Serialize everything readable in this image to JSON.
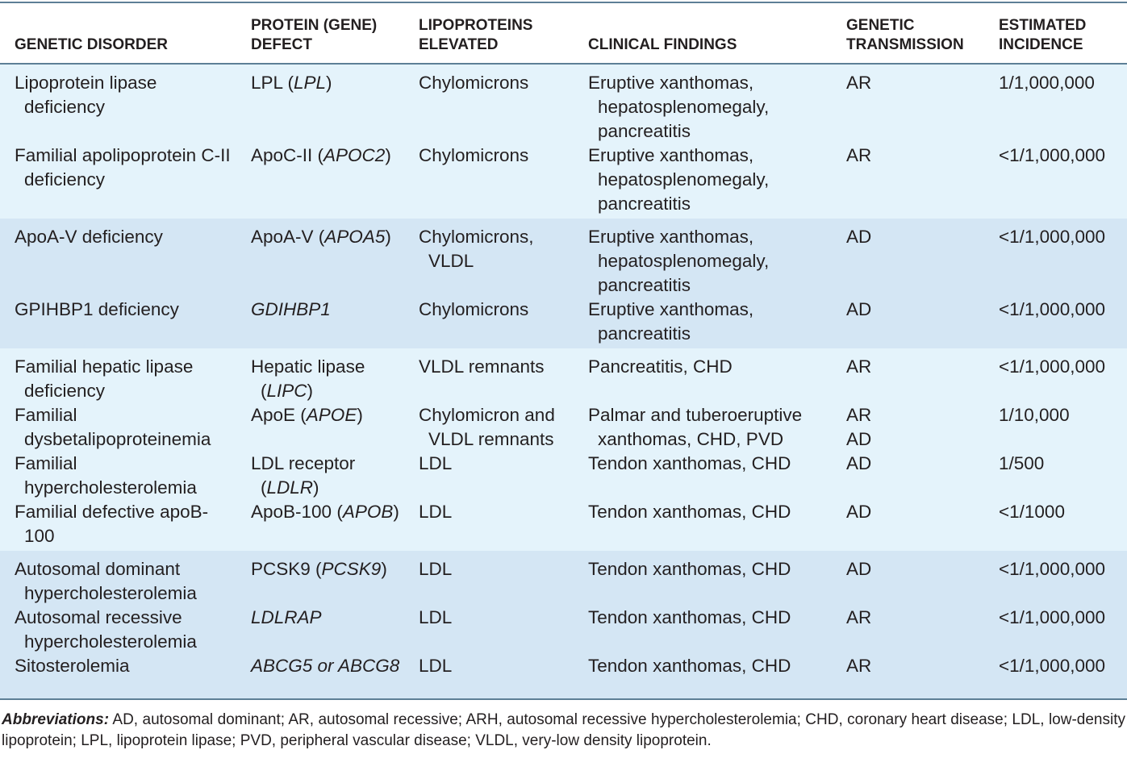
{
  "table": {
    "header": [
      "GENETIC DISORDER",
      "PROTEIN (GENE) DEFECT",
      "LIPOPROTEINS ELEVATED",
      "CLINICAL FINDINGS",
      "GENETIC TRANSMISSION",
      "ESTIMATED INCIDENCE"
    ],
    "rows": [
      [
        "Lipoprotein lipase deficiency",
        [
          {
            "text": "LPL ("
          },
          {
            "text": "LPL",
            "italic": true
          },
          {
            "text": ")"
          }
        ],
        "Chylomicrons",
        "Eruptive xanthomas, hepatosplenomegaly, pancreatitis",
        "AR",
        "1/1,000,000"
      ],
      [
        "Familial apolipoprotein C-II deficiency",
        [
          {
            "text": "ApoC-II ("
          },
          {
            "text": "APOC2",
            "italic": true
          },
          {
            "text": ")"
          }
        ],
        "Chylomicrons",
        "Eruptive xanthomas, hepatosplenomegaly, pancreatitis",
        "AR",
        "<1/1,000,000"
      ],
      [
        "ApoA-V deficiency",
        [
          {
            "text": "ApoA-V ("
          },
          {
            "text": "APOA5",
            "italic": true
          },
          {
            "text": ")"
          }
        ],
        "Chylomicrons, VLDL",
        "Eruptive xanthomas, hepatosplenomegaly, pancreatitis",
        "AD",
        "<1/1,000,000"
      ],
      [
        "GPIHBP1 deficiency",
        [
          {
            "text": "GDIHBP1",
            "italic": true
          }
        ],
        "Chylomicrons",
        "Eruptive xanthomas, pancreatitis",
        "AD",
        "<1/1,000,000"
      ],
      [
        "Familial hepatic lipase deficiency",
        [
          {
            "text": "Hepatic lipase ("
          },
          {
            "text": "LIPC",
            "italic": true
          },
          {
            "text": ")"
          }
        ],
        "VLDL remnants",
        "Pancreatitis, CHD",
        "AR",
        "<1/1,000,000"
      ],
      [
        "Familial dysbetalipoproteinemia",
        [
          {
            "text": "ApoE ("
          },
          {
            "text": "APOE",
            "italic": true
          },
          {
            "text": ")"
          }
        ],
        "Chylomicron and VLDL remnants",
        "Palmar and tuberoeruptive xanthomas, CHD, PVD",
        [
          "AR",
          "AD"
        ],
        "1/10,000"
      ],
      [
        "Familial hypercholesterolemia",
        [
          {
            "text": "LDL receptor ("
          },
          {
            "text": "LDLR",
            "italic": true
          },
          {
            "text": ")"
          }
        ],
        "LDL",
        "Tendon xanthomas, CHD",
        "AD",
        "1/500"
      ],
      [
        "Familial defective apoB-100",
        [
          {
            "text": "ApoB-100 ("
          },
          {
            "text": "APOB",
            "italic": true
          },
          {
            "text": ")"
          }
        ],
        "LDL",
        "Tendon xanthomas, CHD",
        "AD",
        "<1/1000"
      ],
      [
        "Autosomal dominant hypercholesterolemia",
        [
          {
            "text": "PCSK9 ("
          },
          {
            "text": "PCSK9",
            "italic": true
          },
          {
            "text": ")"
          }
        ],
        "LDL",
        "Tendon xanthomas, CHD",
        "AD",
        "<1/1,000,000"
      ],
      [
        "Autosomal recessive hypercholesterolemia",
        [
          {
            "text": "LDLRAP",
            "italic": true
          }
        ],
        "LDL",
        "Tendon xanthomas, CHD",
        "AR",
        "<1/1,000,000"
      ],
      [
        "Sitosterolemia",
        [
          {
            "text": "ABCG5 or ABCG8",
            "italic": true
          }
        ],
        "LDL",
        "Tendon xanthomas, CHD",
        "AR",
        "<1/1,000,000"
      ]
    ]
  },
  "footer": {
    "label": "Abbreviations:",
    "text": "AD, autosomal dominant; AR, autosomal recessive; ARH, autosomal recessive hypercholesterolemia; CHD, coronary heart disease; LDL, low-density lipoprotein; LPL, lipoprotein lipase; PVD, peripheral vascular disease; VLDL, very-low density lipoprotein."
  }
}
